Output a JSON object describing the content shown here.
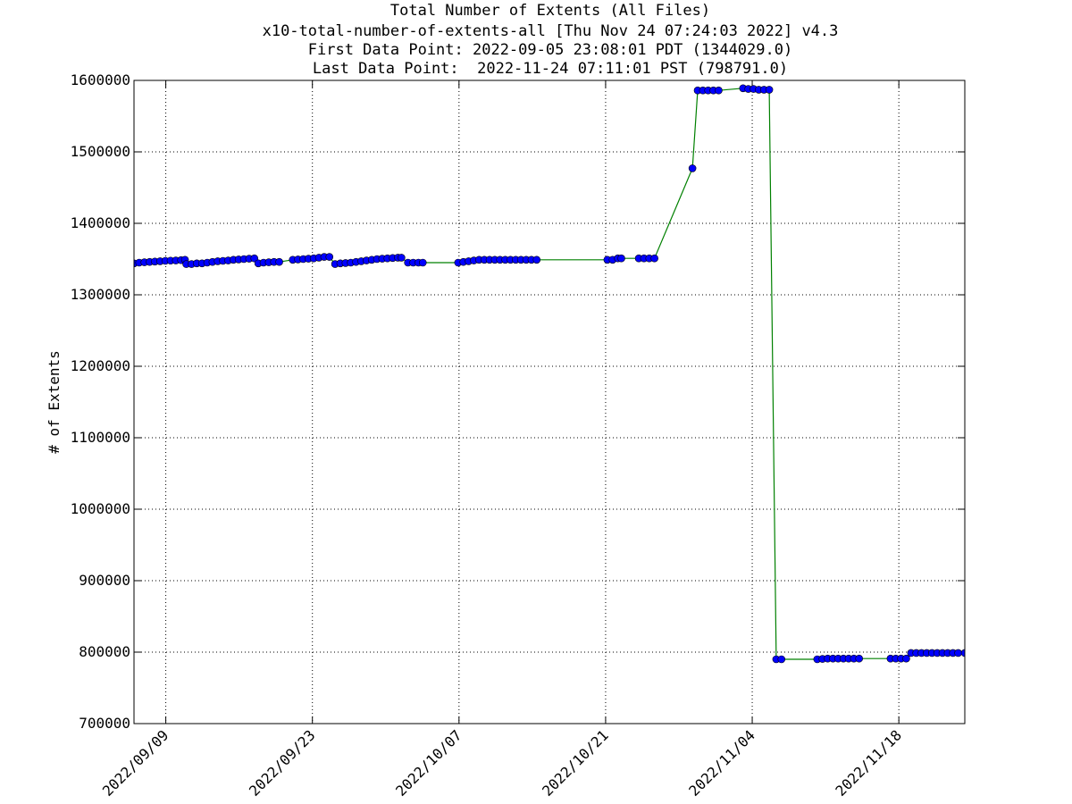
{
  "chart_data": {
    "type": "line",
    "title": "Total Number of Extents (All Files)",
    "subtitle": "x10-total-number-of-extents-all [Thu Nov 24 07:24:03 2022] v4.3",
    "annotations": [
      "First Data Point: 2022-09-05 23:08:01 PDT (1344029.0)",
      "Last Data Point:  2022-11-24 07:11:01 PST (798791.0)"
    ],
    "y_label": "# of Extents",
    "grid": true,
    "xlim": [
      "2022-09-05 23:08",
      "2022-11-24 07:11"
    ],
    "xticks": [
      {
        "value": "2022-09-09",
        "label": "2022/09/09"
      },
      {
        "value": "2022-09-23",
        "label": "2022/09/23"
      },
      {
        "value": "2022-10-07",
        "label": "2022/10/07"
      },
      {
        "value": "2022-10-21",
        "label": "2022/10/21"
      },
      {
        "value": "2022-11-04",
        "label": "2022/11/04"
      },
      {
        "value": "2022-11-18",
        "label": "2022/11/18"
      }
    ],
    "ylim": [
      700000,
      1600000
    ],
    "yticks": [
      700000,
      800000,
      900000,
      1000000,
      1100000,
      1200000,
      1300000,
      1400000,
      1500000,
      1600000
    ],
    "x": [
      "2022-09-05 23:08",
      "2022-09-06 11:00",
      "2022-09-06 23:00",
      "2022-09-07 11:00",
      "2022-09-07 23:00",
      "2022-09-08 11:00",
      "2022-09-08 23:00",
      "2022-09-09 11:00",
      "2022-09-09 23:00",
      "2022-09-10 11:00",
      "2022-09-10 20:00",
      "2022-09-10 23:00",
      "2022-09-11 11:00",
      "2022-09-11 23:00",
      "2022-09-12 11:00",
      "2022-09-12 23:00",
      "2022-09-13 11:00",
      "2022-09-13 23:00",
      "2022-09-14 11:00",
      "2022-09-14 23:00",
      "2022-09-15 11:00",
      "2022-09-15 23:00",
      "2022-09-16 11:00",
      "2022-09-16 23:00",
      "2022-09-17 11:00",
      "2022-09-17 20:00",
      "2022-09-18 08:00",
      "2022-09-18 20:00",
      "2022-09-19 08:00",
      "2022-09-19 20:00",
      "2022-09-21 03:00",
      "2022-09-21 15:00",
      "2022-09-22 03:00",
      "2022-09-22 15:00",
      "2022-09-23 03:00",
      "2022-09-23 15:00",
      "2022-09-24 03:00",
      "2022-09-24 15:00",
      "2022-09-25 04:00",
      "2022-09-25 16:00",
      "2022-09-26 04:00",
      "2022-09-26 16:00",
      "2022-09-27 04:00",
      "2022-09-27 16:00",
      "2022-09-28 04:00",
      "2022-09-28 16:00",
      "2022-09-29 04:00",
      "2022-09-29 16:00",
      "2022-09-30 04:00",
      "2022-09-30 16:00",
      "2022-10-01 04:00",
      "2022-10-01 12:00",
      "2022-10-02 03:00",
      "2022-10-02 15:00",
      "2022-10-03 03:00",
      "2022-10-03 13:00",
      "2022-10-06 22:00",
      "2022-10-07 10:00",
      "2022-10-07 22:00",
      "2022-10-08 10:00",
      "2022-10-08 22:00",
      "2022-10-09 10:00",
      "2022-10-09 22:00",
      "2022-10-10 10:00",
      "2022-10-10 22:00",
      "2022-10-11 10:00",
      "2022-10-11 22:00",
      "2022-10-12 10:00",
      "2022-10-12 22:00",
      "2022-10-13 10:00",
      "2022-10-13 22:00",
      "2022-10-14 10:00",
      "2022-10-21 04:00",
      "2022-10-21 16:00",
      "2022-10-22 04:00",
      "2022-10-22 12:00",
      "2022-10-24 04:00",
      "2022-10-24 16:00",
      "2022-10-25 04:00",
      "2022-10-25 16:00",
      "2022-10-29 07:00",
      "2022-10-29 19:00",
      "2022-10-30 07:00",
      "2022-10-30 19:00",
      "2022-10-31 07:00",
      "2022-10-31 19:00",
      "2022-11-03 03:00",
      "2022-11-03 15:00",
      "2022-11-04 03:00",
      "2022-11-04 15:00",
      "2022-11-05 03:00",
      "2022-11-05 15:00",
      "2022-11-06 07:00",
      "2022-11-06 19:00",
      "2022-11-10 05:00",
      "2022-11-10 17:00",
      "2022-11-11 05:00",
      "2022-11-11 17:00",
      "2022-11-12 05:00",
      "2022-11-12 17:00",
      "2022-11-13 05:00",
      "2022-11-13 17:00",
      "2022-11-14 05:00",
      "2022-11-17 05:00",
      "2022-11-17 17:00",
      "2022-11-18 05:00",
      "2022-11-18 17:00",
      "2022-11-19 04:00",
      "2022-11-19 16:00",
      "2022-11-20 04:00",
      "2022-11-20 16:00",
      "2022-11-21 04:00",
      "2022-11-21 16:00",
      "2022-11-22 04:00",
      "2022-11-22 16:00",
      "2022-11-23 04:00",
      "2022-11-23 16:00",
      "2022-11-24 07:11"
    ],
    "series": [
      {
        "color": "#008000",
        "marker_color": "#0000ff",
        "values": [
          1344029,
          1345000,
          1345500,
          1346000,
          1346500,
          1347000,
          1347500,
          1347800,
          1348000,
          1348500,
          1349000,
          1343000,
          1343000,
          1344000,
          1344000,
          1345000,
          1346000,
          1347000,
          1347500,
          1348000,
          1349000,
          1349500,
          1350000,
          1350500,
          1351000,
          1344000,
          1345000,
          1345500,
          1346000,
          1346000,
          1349000,
          1349500,
          1350000,
          1350500,
          1351000,
          1352000,
          1353000,
          1353000,
          1343000,
          1344000,
          1344500,
          1345000,
          1346000,
          1347000,
          1348000,
          1349000,
          1350000,
          1350500,
          1351000,
          1351500,
          1352000,
          1352000,
          1345000,
          1345000,
          1345000,
          1345000,
          1345000,
          1346000,
          1347000,
          1348000,
          1349000,
          1349000,
          1349000,
          1349000,
          1349000,
          1349000,
          1349000,
          1349000,
          1349000,
          1349000,
          1349000,
          1349000,
          1349000,
          1349000,
          1351000,
          1351000,
          1351000,
          1351000,
          1351000,
          1351000,
          1477000,
          1586000,
          1586000,
          1586000,
          1586000,
          1586000,
          1589000,
          1588000,
          1588000,
          1587000,
          1587000,
          1587000,
          790000,
          790000,
          790000,
          790500,
          791000,
          791000,
          791000,
          791000,
          791000,
          791000,
          791000,
          791000,
          791000,
          791000,
          791000,
          798791,
          798791,
          798791,
          798791,
          798791,
          798791,
          798791,
          798791,
          798791,
          798791,
          798791
        ]
      }
    ]
  }
}
